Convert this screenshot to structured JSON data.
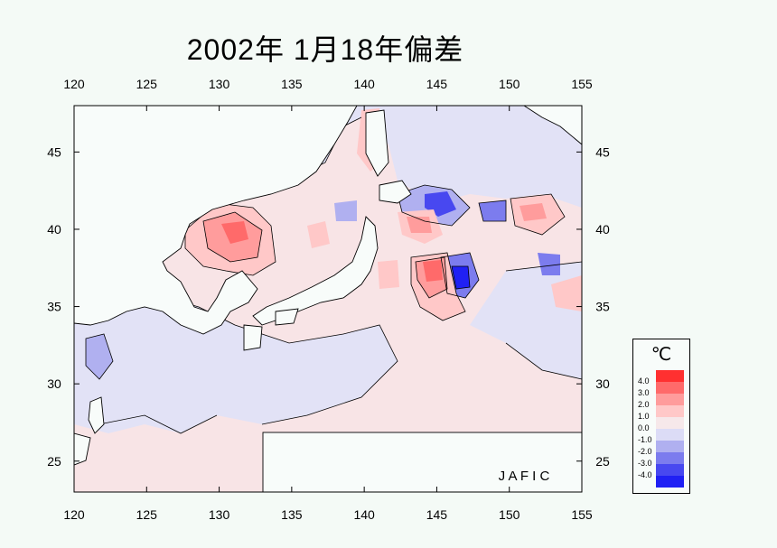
{
  "title": "2002年 1月18年偏差",
  "credit": "J A F I C",
  "map": {
    "lon_ticks": [
      "120",
      "125",
      "130",
      "135",
      "140",
      "145",
      "150",
      "155"
    ],
    "lat_ticks": [
      "45",
      "40",
      "35",
      "30",
      "25"
    ],
    "lon_range": [
      120,
      155
    ],
    "lat_range": [
      23,
      48
    ]
  },
  "legend": {
    "unit": "℃",
    "labels": [
      "4.0",
      "3.0",
      "2.0",
      "1.0",
      "0.0",
      "-1.0",
      "-2.0",
      "-3.0",
      "-4.0"
    ],
    "colors": [
      "#ff3030",
      "#ff6a6a",
      "#ff9c9c",
      "#ffc8c8",
      "#f6e8ea",
      "#dcdcf6",
      "#b0b0f0",
      "#7c7cee",
      "#4848f0",
      "#2020f4"
    ]
  },
  "colors": {
    "background": "#f4faf6",
    "neutral_warm": "#f8e4e6",
    "neutral_cool": "#e2e2f6",
    "land": "#f8fcfa"
  }
}
